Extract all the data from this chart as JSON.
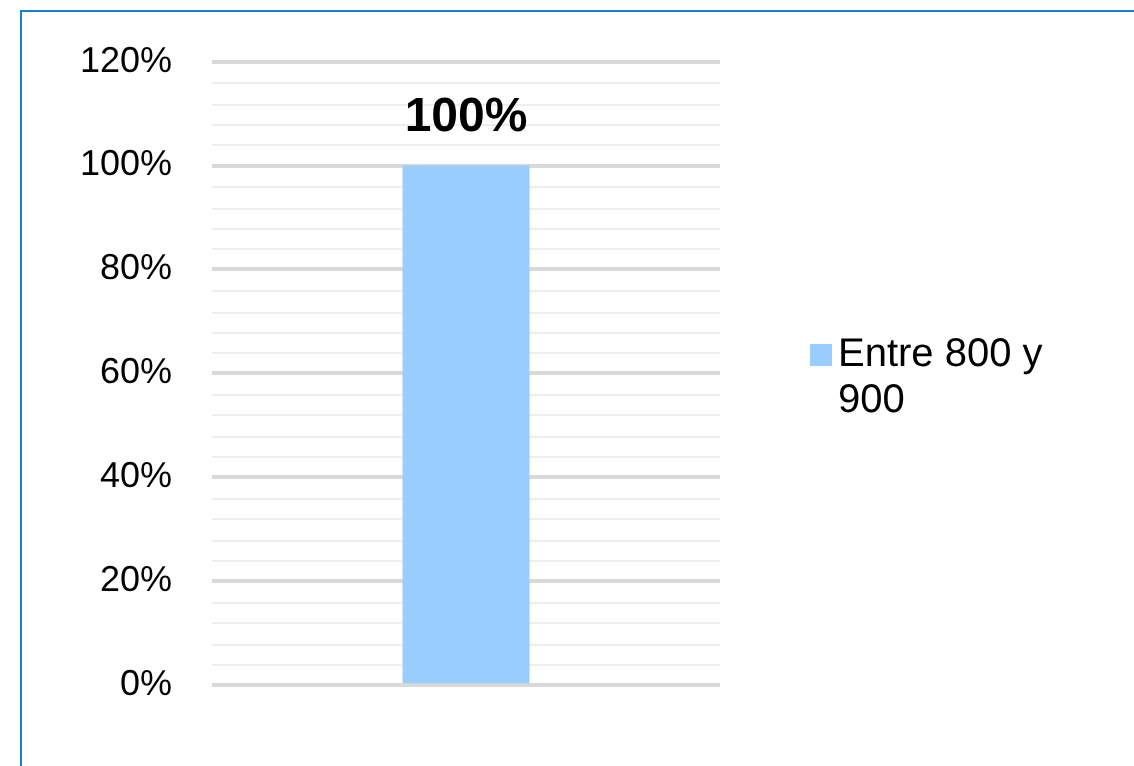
{
  "chart_data": {
    "type": "bar",
    "categories": [
      null
    ],
    "series": [
      {
        "name": "Entre 800 y 900",
        "color": "#99ccff",
        "values": [
          100
        ],
        "value_labels": [
          "100%"
        ]
      }
    ],
    "ylim": [
      0,
      120
    ],
    "yticks": [
      {
        "value": 0,
        "label": "0%"
      },
      {
        "value": 20,
        "label": "20%"
      },
      {
        "value": 40,
        "label": "40%"
      },
      {
        "value": 60,
        "label": "60%"
      },
      {
        "value": 80,
        "label": "80%"
      },
      {
        "value": 100,
        "label": "100%"
      },
      {
        "value": 120,
        "label": "120%"
      }
    ],
    "grid": "y",
    "legend": "right"
  }
}
